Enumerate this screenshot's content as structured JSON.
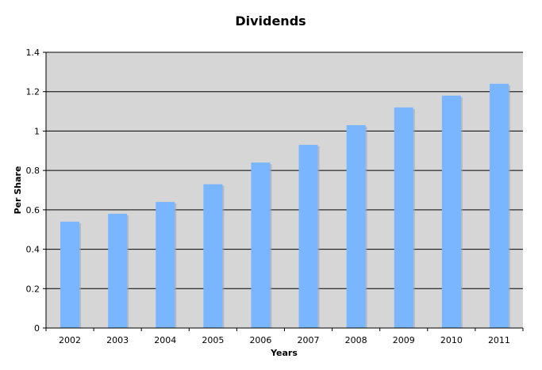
{
  "chart_data": {
    "type": "bar",
    "title": "Dividends",
    "xlabel": "Years",
    "ylabel": "Per Share",
    "categories": [
      "2002",
      "2003",
      "2004",
      "2005",
      "2006",
      "2007",
      "2008",
      "2009",
      "2010",
      "2011"
    ],
    "values": [
      0.54,
      0.58,
      0.64,
      0.73,
      0.84,
      0.93,
      1.03,
      1.12,
      1.18,
      1.24
    ],
    "ylim": [
      0,
      1.4
    ],
    "yticks": [
      "0",
      "0.2",
      "0.4",
      "0.6",
      "0.8",
      "1",
      "1.2",
      "1.4"
    ],
    "ytick_values": [
      0,
      0.2,
      0.4,
      0.6,
      0.8,
      1.0,
      1.2,
      1.4
    ],
    "grid": true,
    "legend": "none",
    "colors": {
      "bar": "#7ab5ff",
      "plot_background": "#d6d6d6",
      "gridline": "#000000",
      "axis": "#000000"
    }
  }
}
